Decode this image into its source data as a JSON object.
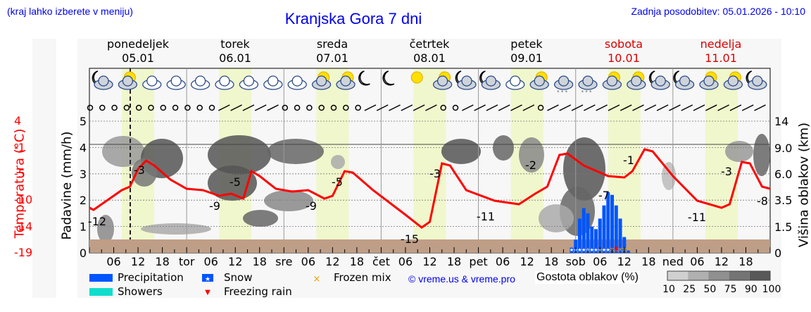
{
  "header": {
    "location_hint": "(kraj lahko izberete v meniju)",
    "title": "Kranjska Gora 7 dni",
    "last_update": "Zadnja posodobitev: 05.01.2026 - 10:10"
  },
  "days": [
    {
      "name": "ponedeljek",
      "date": "05.01",
      "weekend": false,
      "x": 196
    },
    {
      "name": "torek",
      "date": "06.01",
      "weekend": false,
      "x": 334
    },
    {
      "name": "sreda",
      "date": "07.01",
      "weekend": false,
      "x": 472
    },
    {
      "name": "četrtek",
      "date": "08.01",
      "weekend": false,
      "x": 610
    },
    {
      "name": "petek",
      "date": "09.01",
      "weekend": false,
      "x": 748
    },
    {
      "name": "sobota",
      "date": "10.01",
      "weekend": true,
      "x": 886
    },
    {
      "name": "nedelja",
      "date": "11.01",
      "weekend": true,
      "x": 1024
    }
  ],
  "axes": {
    "temperature_label": "Temperatura (°C)",
    "temperature_ticks": [
      "4",
      "-1",
      "-5",
      "-10",
      "-14",
      "-19"
    ],
    "precip_label": "Padavine (mm/h)",
    "precip_ticks": [
      "0",
      "1",
      "2",
      "3",
      "4",
      "5"
    ],
    "cloud_height_label": "Višina oblakov (km)",
    "cloud_height_ticks": [
      "0",
      "1.5",
      "3.5",
      "6.0",
      "9.0",
      "14"
    ],
    "x_ticks": [
      "06",
      "12",
      "18",
      "tor",
      "06",
      "12",
      "18",
      "sre",
      "06",
      "12",
      "18",
      "čet",
      "06",
      "12",
      "18",
      "pet",
      "06",
      "12",
      "18",
      "sob",
      "06",
      "12",
      "18",
      "ned",
      "06",
      "12",
      "18"
    ]
  },
  "legend": {
    "precipitation": "Precipitation",
    "showers": "Showers",
    "snow": "Snow",
    "freezing_rain": "Freezing rain",
    "frozen_mix": "Frozen mix",
    "copyright": "© vreme.us & vreme.pro",
    "cloud_density_label": "Gostota oblakov (%)",
    "cloud_density_ticks": [
      "10",
      "25",
      "50",
      "75",
      "90",
      "100"
    ]
  },
  "colors": {
    "precipitation": "#0055ff",
    "showers": "#11ddcc",
    "temperature": "#ff0000",
    "ground": "#bf9e87",
    "daylight": "#f0f7cc",
    "link_blue": "#0000ee",
    "weekend_red": "#dd0000"
  },
  "chart_data": {
    "type": "line",
    "title": "Kranjska Gora 7 dni",
    "xlabel": "",
    "ylabel": "Temperatura (°C) / Padavine (mm/h)",
    "x_range_hours": [
      0,
      168
    ],
    "temperature_series": {
      "name": "Temperatura (°C)",
      "labeled_extremes": [
        {
          "hour": 1,
          "value": -12
        },
        {
          "hour": 14,
          "value": -3
        },
        {
          "hour": 38,
          "value": -9
        },
        {
          "hour": 40,
          "value": -5
        },
        {
          "hour": 62,
          "value": -9
        },
        {
          "hour": 64,
          "value": -5
        },
        {
          "hour": 82,
          "value": -15
        },
        {
          "hour": 87,
          "value": -3
        },
        {
          "hour": 106,
          "value": -11
        },
        {
          "hour": 111,
          "value": -2
        },
        {
          "hour": 130,
          "value": -7
        },
        {
          "hour": 135,
          "value": -1
        },
        {
          "hour": 154,
          "value": -11
        },
        {
          "hour": 159,
          "value": -3
        },
        {
          "hour": 168,
          "value": -8
        }
      ]
    },
    "precipitation_series": {
      "name": "Precipitation (mm/h)",
      "hours": [
        119,
        120,
        121,
        122,
        123,
        124,
        125,
        126,
        127,
        128,
        129,
        130,
        131,
        132,
        133
      ],
      "values": [
        0.2,
        0.5,
        1.3,
        1.7,
        1.5,
        1.0,
        0.9,
        1.3,
        1.8,
        2.3,
        2.2,
        1.8,
        1.3,
        0.6,
        0.1
      ]
    },
    "precip_types": [
      {
        "hours": "119-128",
        "type": "snow"
      },
      {
        "hours": "129-133",
        "type": "frozen_mix"
      },
      {
        "hours": "130",
        "type": "freezing_rain"
      }
    ],
    "ylim_precip": [
      0,
      5
    ],
    "ylim_temp": [
      -19,
      4
    ],
    "cloud_height_km_ticks": [
      0,
      1.5,
      3.5,
      6.0,
      9.0,
      14
    ],
    "grid": true,
    "legend_position": "bottom"
  }
}
